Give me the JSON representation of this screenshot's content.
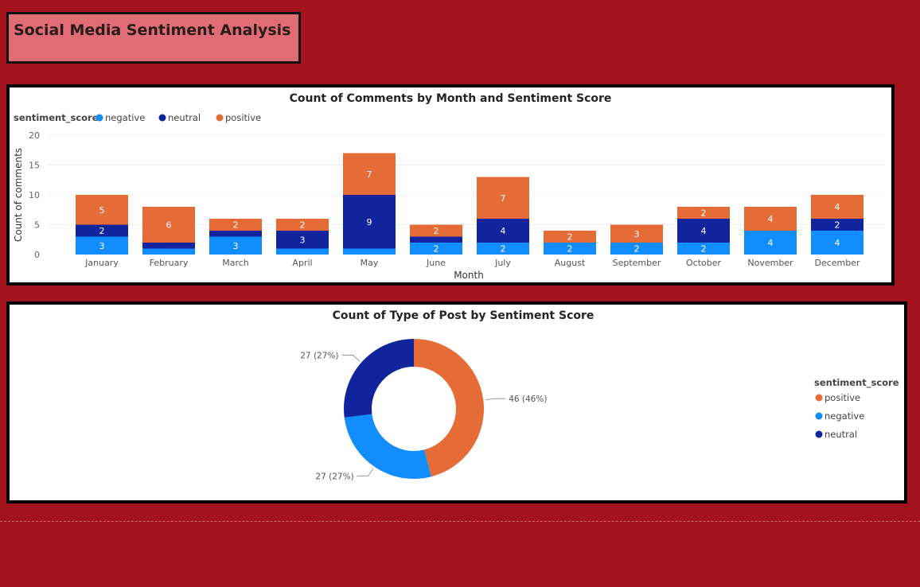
{
  "page": {
    "title": "Social Media Sentiment Analysis"
  },
  "colors": {
    "negative": "#118dff",
    "neutral": "#12239e",
    "positive": "#e66c37"
  },
  "chart_data": [
    {
      "type": "bar",
      "stacked": true,
      "title": "Count of Comments by Month and Sentiment Score",
      "legend_title": "sentiment_score",
      "legend_position": "top-left",
      "xlabel": "Month",
      "ylabel": "Count of comments",
      "ylim": [
        0,
        20
      ],
      "yticks": [
        0,
        5,
        10,
        15,
        20
      ],
      "grid": true,
      "categories": [
        "January",
        "February",
        "March",
        "April",
        "May",
        "June",
        "July",
        "August",
        "September",
        "October",
        "November",
        "December"
      ],
      "series": [
        {
          "name": "negative",
          "values": [
            3,
            1,
            3,
            1,
            1,
            2,
            2,
            2,
            2,
            2,
            4,
            4
          ]
        },
        {
          "name": "neutral",
          "values": [
            2,
            1,
            1,
            3,
            9,
            1,
            4,
            0,
            0,
            4,
            0,
            2
          ]
        },
        {
          "name": "positive",
          "values": [
            5,
            6,
            2,
            2,
            7,
            2,
            7,
            2,
            3,
            2,
            4,
            4
          ]
        }
      ]
    },
    {
      "type": "pie",
      "donut": true,
      "title": "Count of Type of Post by Sentiment Score",
      "legend_title": "sentiment_score",
      "legend_position": "right",
      "slices": [
        {
          "name": "positive",
          "value": 46,
          "label": "46 (46%)"
        },
        {
          "name": "negative",
          "value": 27,
          "label": "27 (27%)"
        },
        {
          "name": "neutral",
          "value": 27,
          "label": "27 (27%)"
        }
      ]
    }
  ]
}
